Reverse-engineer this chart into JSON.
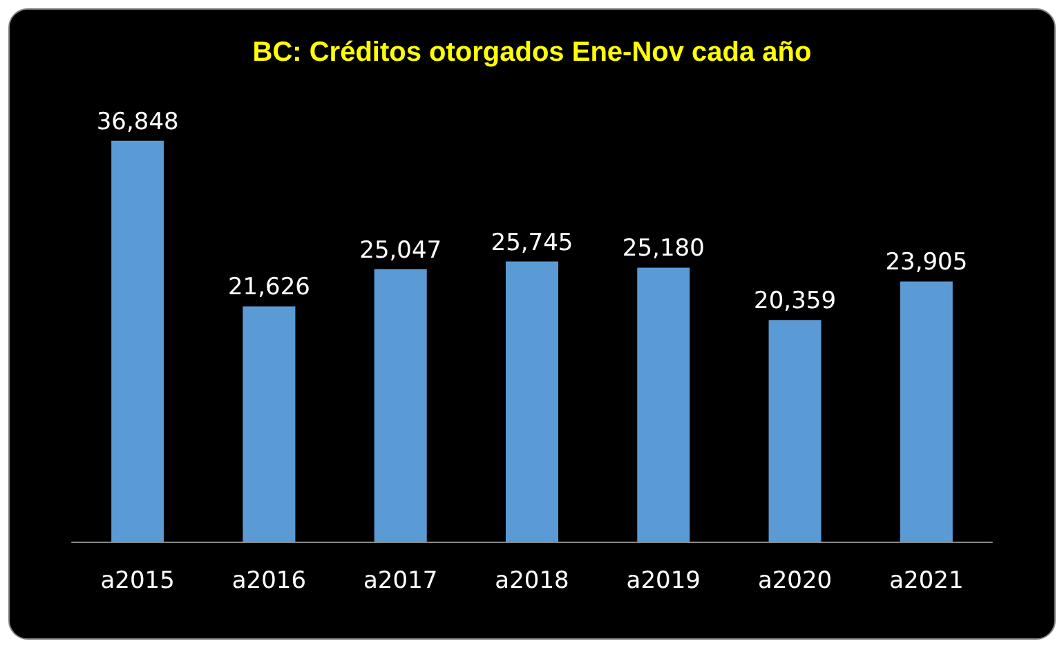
{
  "chart_data": {
    "type": "bar",
    "title": "BC: Créditos otorgados Ene-Nov cada año",
    "categories": [
      "a2015",
      "a2016",
      "a2017",
      "a2018",
      "a2019",
      "a2020",
      "a2021"
    ],
    "values": [
      36848,
      21626,
      25047,
      25745,
      25180,
      20359,
      23905
    ],
    "value_labels": [
      "36,848",
      "21,626",
      "25,047",
      "25,745",
      "25,180",
      "20,359",
      "23,905"
    ],
    "color": "#5b9bd5",
    "grid": false
  }
}
